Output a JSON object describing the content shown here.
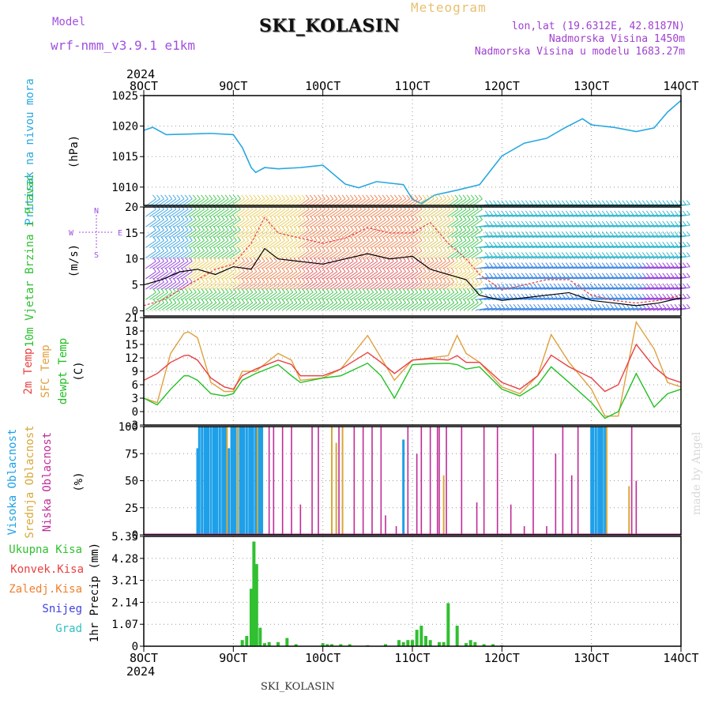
{
  "header": {
    "title": "SKI_KOLASIN",
    "model_label": "Model",
    "model_name": "wrf-nmm_v3.9.1 e1km",
    "kind": "Meteogram",
    "lonlat": "lon,lat (19.6312E, 42.8187N)",
    "elevation": "Nadmorska Visina 1450m",
    "model_elevation": "Nadmorska Visina u modelu 1683.27m",
    "credit": "made by Angel",
    "footer": "SKI_KOLASIN"
  },
  "time_axis": {
    "top_year": "2024",
    "bottom_year": "2024",
    "labels": [
      "8OCT",
      "9OCT",
      "10OCT",
      "11OCT",
      "12OCT",
      "13OCT",
      "14OCT"
    ]
  },
  "colors": {
    "pressure": "#29a8e0",
    "temp2m": "#e84040",
    "sfc": "#e0a040",
    "dewpt": "#22c022",
    "high_cloud": "#1ea0e8",
    "mid_cloud": "#d8a838",
    "low_cloud": "#c02c98",
    "precip": "#30c030",
    "speed_line": "#000000",
    "gust": "#e84040"
  },
  "chart_data": [
    {
      "type": "line",
      "ylabel_left": "Pritisak na nivou mora",
      "unit": "(hPa)",
      "ylim": [
        1007,
        1025
      ],
      "yticks": [
        1010,
        1015,
        1020,
        1025
      ],
      "grid": true,
      "x": [
        8.0,
        8.1,
        8.25,
        8.5,
        8.75,
        9.0,
        9.1,
        9.2,
        9.25,
        9.35,
        9.5,
        9.75,
        10.0,
        10.25,
        10.4,
        10.6,
        10.9,
        11.0,
        11.1,
        11.25,
        11.5,
        11.75,
        12.0,
        12.25,
        12.5,
        12.7,
        12.9,
        13.0,
        13.25,
        13.5,
        13.7,
        13.85,
        14.0
      ],
      "series": [
        {
          "values": [
            1019.3,
            1019.8,
            1018.6,
            1018.7,
            1018.8,
            1018.6,
            1016.5,
            1013.2,
            1012.4,
            1013.2,
            1013.0,
            1013.2,
            1013.6,
            1010.5,
            1009.9,
            1010.9,
            1010.4,
            1008.0,
            1007.3,
            1008.7,
            1009.5,
            1010.4,
            1015.1,
            1017.2,
            1018.0,
            1019.7,
            1021.2,
            1020.2,
            1019.8,
            1019.1,
            1019.7,
            1022.3,
            1024.2
          ]
        }
      ]
    },
    {
      "type": "line",
      "ylabel_left": "10m Vjetar Brzina i Pravac",
      "unit": "(m/s)",
      "compass": [
        "N",
        "E",
        "S",
        "W"
      ],
      "ylim": [
        -1,
        20
      ],
      "yticks": [
        0,
        5,
        10,
        15,
        20
      ],
      "grid": true,
      "x": [
        8.0,
        8.2,
        8.4,
        8.6,
        8.8,
        9.0,
        9.2,
        9.35,
        9.5,
        9.75,
        10.0,
        10.25,
        10.5,
        10.75,
        11.0,
        11.2,
        11.4,
        11.6,
        11.75,
        12.0,
        12.25,
        12.5,
        12.75,
        13.0,
        13.25,
        13.5,
        13.75,
        14.0
      ],
      "series": [
        {
          "name": "speed",
          "values": [
            5,
            6,
            7.5,
            8,
            7,
            8.5,
            8,
            12,
            10,
            9.5,
            9,
            10,
            11,
            10,
            10.5,
            8,
            7,
            6,
            3,
            2,
            2.5,
            3,
            3.5,
            2,
            1.5,
            1,
            1.5,
            2.5
          ]
        },
        {
          "name": "gust",
          "values": [
            1,
            2,
            4,
            6,
            8,
            9,
            13,
            18,
            15,
            14,
            13,
            14,
            16,
            15,
            15,
            17,
            13,
            10,
            7,
            4,
            5,
            6,
            6,
            3,
            2,
            1.5,
            2,
            3
          ]
        }
      ]
    },
    {
      "type": "line",
      "ylabel_left": [
        "2m Temp",
        "SFC Temp",
        "dewpt Temp"
      ],
      "unit": "(C)",
      "ylim": [
        -3,
        21
      ],
      "yticks": [
        -3,
        0,
        3,
        6,
        9,
        12,
        15,
        18,
        21
      ],
      "grid": true,
      "x": [
        8.0,
        8.15,
        8.3,
        8.45,
        8.5,
        8.6,
        8.75,
        8.9,
        9.0,
        9.1,
        9.25,
        9.5,
        9.65,
        9.75,
        10.0,
        10.2,
        10.5,
        10.65,
        10.8,
        11.0,
        11.2,
        11.4,
        11.5,
        11.6,
        11.75,
        12.0,
        12.2,
        12.4,
        12.55,
        12.75,
        13.0,
        13.15,
        13.3,
        13.5,
        13.7,
        13.85,
        14.0
      ],
      "series": [
        {
          "name": "2m Temp",
          "values": [
            7,
            8.5,
            11,
            12.5,
            12.6,
            11.5,
            7.5,
            5.5,
            5.0,
            8.0,
            9.5,
            11.5,
            10.5,
            8.0,
            8.0,
            9.5,
            13.2,
            11.0,
            8.5,
            11.5,
            11.8,
            11.5,
            12.5,
            11.0,
            11.0,
            6.5,
            5.0,
            8.0,
            12.6,
            10.0,
            7.5,
            4.5,
            6.0,
            15.0,
            10.0,
            7.5,
            6.5
          ]
        },
        {
          "name": "SFC Temp",
          "values": [
            3,
            2.0,
            13.0,
            17.5,
            17.8,
            16.5,
            6.5,
            4.5,
            4.5,
            9.0,
            9.0,
            13.0,
            11.5,
            7.0,
            7.5,
            9.5,
            17.0,
            12.0,
            7.0,
            11.5,
            12.0,
            12.5,
            17.0,
            13.0,
            11.0,
            5.5,
            4.0,
            8.0,
            17.2,
            11.0,
            5.0,
            -1.0,
            -1.0,
            20.0,
            14.0,
            6.5,
            5.5
          ]
        },
        {
          "name": "dewpt Temp",
          "values": [
            3,
            1.5,
            5.0,
            8.0,
            8.0,
            7.0,
            4.0,
            3.5,
            4.0,
            7.0,
            8.5,
            10.5,
            8.0,
            6.5,
            7.5,
            8.0,
            10.8,
            8.0,
            3.0,
            10.5,
            10.7,
            10.8,
            10.5,
            9.5,
            10.0,
            5.0,
            3.5,
            6.0,
            10.0,
            6.5,
            2.0,
            -1.5,
            0.0,
            8.5,
            1.0,
            4.0,
            5.0
          ]
        }
      ]
    },
    {
      "type": "bar",
      "ylabel_left": [
        "Visoka Oblacnost",
        "Srednja Oblacnost",
        "Niska Oblacnost"
      ],
      "unit": "(%)",
      "ylim": [
        0,
        100
      ],
      "yticks": [
        0,
        25,
        50,
        75,
        100
      ],
      "grid": true,
      "series": [
        {
          "name": "Visoka Oblacnost",
          "x": [
            8.6,
            8.62,
            8.65,
            8.68,
            8.7,
            8.72,
            8.75,
            8.78,
            8.8,
            8.82,
            8.85,
            8.88,
            8.9,
            8.92,
            8.95,
            8.98,
            9.0,
            9.02,
            9.05,
            9.08,
            9.1,
            9.12,
            9.15,
            9.18,
            9.2,
            9.22,
            9.25,
            9.28,
            9.3,
            9.32,
            10.9,
            13.0,
            13.02,
            13.05,
            13.08,
            13.1,
            13.12,
            13.15
          ],
          "values": [
            80,
            100,
            100,
            100,
            100,
            100,
            100,
            100,
            100,
            100,
            100,
            100,
            100,
            100,
            80,
            100,
            100,
            100,
            100,
            100,
            100,
            100,
            100,
            100,
            100,
            100,
            100,
            100,
            100,
            100,
            88,
            100,
            100,
            100,
            100,
            100,
            100,
            100
          ]
        },
        {
          "name": "Srednja Oblacnost",
          "x": [
            8.93,
            9.05,
            9.27,
            10.1,
            10.15,
            10.22,
            11.35,
            13.17,
            13.42
          ],
          "values": [
            100,
            100,
            100,
            100,
            85,
            100,
            55,
            100,
            45
          ]
        },
        {
          "name": "Niska Oblacnost",
          "x": [
            9.4,
            9.45,
            9.55,
            9.65,
            9.75,
            9.88,
            9.95,
            10.18,
            10.35,
            10.45,
            10.55,
            10.65,
            10.7,
            10.82,
            10.95,
            11.05,
            11.1,
            11.2,
            11.28,
            11.3,
            11.38,
            11.55,
            11.72,
            11.8,
            11.95,
            12.1,
            12.25,
            12.35,
            12.5,
            12.6,
            12.68,
            12.78,
            12.85,
            13.5,
            13.45
          ],
          "values": [
            100,
            100,
            100,
            100,
            28,
            100,
            100,
            100,
            100,
            100,
            100,
            100,
            18,
            8,
            100,
            75,
            100,
            100,
            100,
            100,
            100,
            100,
            30,
            100,
            100,
            28,
            8,
            100,
            8,
            75,
            100,
            55,
            100,
            50,
            100
          ]
        }
      ]
    },
    {
      "type": "bar",
      "ylabel_left": [
        "Ukupna Kisa",
        "Konvek.Kisa",
        "Zaledj.Kisa",
        "Snijeg",
        "Grad"
      ],
      "ylabel": "1hr Precip (mm)",
      "ylim": [
        0,
        5.35
      ],
      "yticks": [
        0,
        1.07,
        2.14,
        3.21,
        4.28,
        5.35
      ],
      "ytick_labels": [
        "0",
        "1.07",
        "2.14",
        "3.21",
        "4.28",
        "5.35"
      ],
      "grid": true,
      "x": [
        9.1,
        9.15,
        9.2,
        9.23,
        9.26,
        9.3,
        9.35,
        9.4,
        9.5,
        9.6,
        9.7,
        10.0,
        10.05,
        10.1,
        10.2,
        10.3,
        10.5,
        10.7,
        10.85,
        10.9,
        10.95,
        11.0,
        11.05,
        11.1,
        11.15,
        11.2,
        11.3,
        11.35,
        11.4,
        11.5,
        11.6,
        11.65,
        11.7,
        11.8,
        11.9,
        12.0
      ],
      "values": [
        0.3,
        0.5,
        2.8,
        5.1,
        4.0,
        0.9,
        0.15,
        0.2,
        0.2,
        0.4,
        0.1,
        0.15,
        0.1,
        0.1,
        0.1,
        0.1,
        0.05,
        0.1,
        0.3,
        0.2,
        0.3,
        0.3,
        0.8,
        1.0,
        0.5,
        0.3,
        0.2,
        0.2,
        2.1,
        1.0,
        0.15,
        0.3,
        0.2,
        0.1,
        0.1,
        0.05
      ]
    }
  ]
}
